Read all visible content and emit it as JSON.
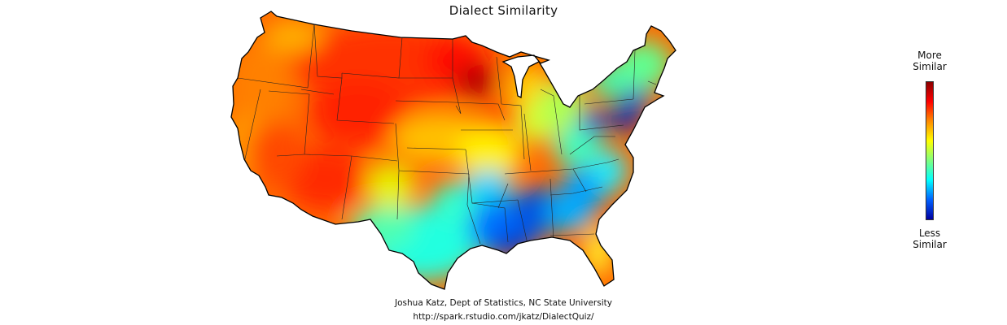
{
  "title": "Dialect Similarity",
  "legend": {
    "top_line1": "More",
    "top_line2": "Similar",
    "bottom_line1": "Less",
    "bottom_line2": "Similar",
    "scale_colors": [
      "#8b0000",
      "#ff0000",
      "#ff8c00",
      "#ffff00",
      "#7fff7f",
      "#00ffff",
      "#0060ff",
      "#0000a0"
    ]
  },
  "credit": {
    "line1": "Joshua Katz, Dept of Statistics, NC State University",
    "line2": "http://spark.rstudio.com/jkatz/DialectQuiz/"
  }
}
